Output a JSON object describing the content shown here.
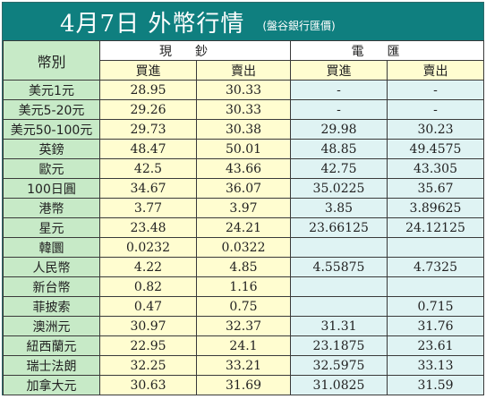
{
  "header": {
    "title": "4月7日 外幣行情",
    "subtitle": "(盤谷銀行匯價)"
  },
  "columns": {
    "currency_label": "幣別",
    "cash_label": "現鈔",
    "wire_label": "電匯",
    "buy_label": "買進",
    "sell_label": "賣出"
  },
  "rows": [
    {
      "currency": "美元1元",
      "cash_buy": "28.95",
      "cash_sell": "30.33",
      "wire_buy": "-",
      "wire_sell": "-"
    },
    {
      "currency": "美元5-20元",
      "cash_buy": "29.26",
      "cash_sell": "30.33",
      "wire_buy": "-",
      "wire_sell": "-"
    },
    {
      "currency": "美元50-100元",
      "cash_buy": "29.73",
      "cash_sell": "30.38",
      "wire_buy": "29.98",
      "wire_sell": "30.23"
    },
    {
      "currency": "英鎊",
      "cash_buy": "48.47",
      "cash_sell": "50.01",
      "wire_buy": "48.85",
      "wire_sell": "49.4575"
    },
    {
      "currency": "歐元",
      "cash_buy": "42.5",
      "cash_sell": "43.66",
      "wire_buy": "42.75",
      "wire_sell": "43.305"
    },
    {
      "currency": "100日圓",
      "cash_buy": "34.67",
      "cash_sell": "36.07",
      "wire_buy": "35.0225",
      "wire_sell": "35.67"
    },
    {
      "currency": "港幣",
      "cash_buy": "3.77",
      "cash_sell": "3.97",
      "wire_buy": "3.85",
      "wire_sell": "3.89625"
    },
    {
      "currency": "星元",
      "cash_buy": "23.48",
      "cash_sell": "24.21",
      "wire_buy": "23.66125",
      "wire_sell": "24.12125"
    },
    {
      "currency": "韓圜",
      "cash_buy": "0.0232",
      "cash_sell": "0.0322",
      "wire_buy": "",
      "wire_sell": ""
    },
    {
      "currency": "人民幣",
      "cash_buy": "4.22",
      "cash_sell": "4.85",
      "wire_buy": "4.55875",
      "wire_sell": "4.7325"
    },
    {
      "currency": "新台幣",
      "cash_buy": "0.82",
      "cash_sell": "1.16",
      "wire_buy": "",
      "wire_sell": ""
    },
    {
      "currency": "菲披索",
      "cash_buy": "0.47",
      "cash_sell": "0.75",
      "wire_buy": "",
      "wire_sell": "0.715"
    },
    {
      "currency": "澳洲元",
      "cash_buy": "30.97",
      "cash_sell": "32.37",
      "wire_buy": "31.31",
      "wire_sell": "31.76"
    },
    {
      "currency": "紐西蘭元",
      "cash_buy": "22.95",
      "cash_sell": "24.1",
      "wire_buy": "23.1875",
      "wire_sell": "23.61"
    },
    {
      "currency": "瑞士法朗",
      "cash_buy": "32.25",
      "cash_sell": "33.21",
      "wire_buy": "32.5975",
      "wire_sell": "33.13"
    },
    {
      "currency": "加拿大元",
      "cash_buy": "30.63",
      "cash_sell": "31.69",
      "wire_buy": "31.0825",
      "wire_sell": "31.59"
    }
  ],
  "colors": {
    "header_bg": "#0f7f7f",
    "currency_bg": "#c7eac7",
    "cash_bg": "#fffdd0",
    "wire_bg": "#dff3f3"
  }
}
